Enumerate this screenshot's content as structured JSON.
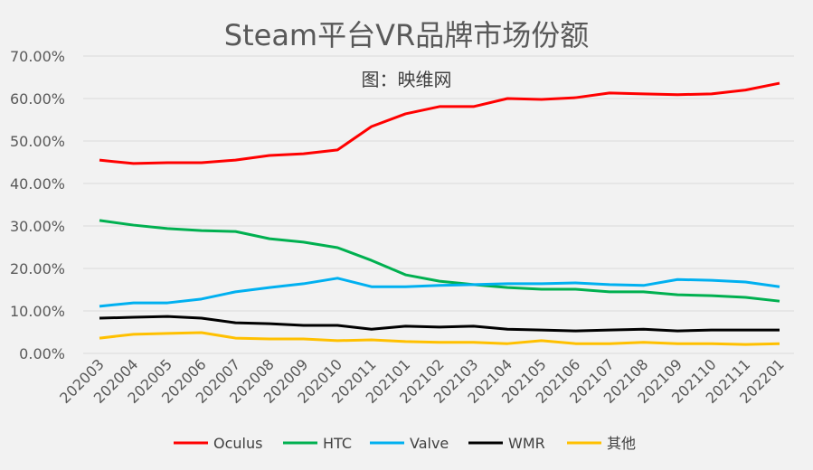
{
  "chart_data": {
    "type": "line",
    "title": "Steam平台VR品牌市场份额",
    "subtitle": "图：映维网",
    "xlabel": "",
    "ylabel": "",
    "ylim": [
      0,
      70
    ],
    "yticks": [
      "0.00%",
      "10.00%",
      "20.00%",
      "30.00%",
      "40.00%",
      "50.00%",
      "60.00%",
      "70.00%"
    ],
    "grid": true,
    "legend_position": "bottom",
    "categories": [
      "202003",
      "202004",
      "202005",
      "202006",
      "202007",
      "202008",
      "202009",
      "202010",
      "202011",
      "202101",
      "202102",
      "202103",
      "202104",
      "202105",
      "202106",
      "202107",
      "202108",
      "202109",
      "202110",
      "202111",
      "202201"
    ],
    "series": [
      {
        "name": "Oculus",
        "color": "#ff0000",
        "values": [
          45.5,
          44.7,
          44.9,
          44.9,
          45.5,
          46.6,
          47.0,
          47.9,
          53.4,
          56.4,
          58.1,
          58.1,
          60.0,
          59.8,
          60.2,
          61.3,
          61.1,
          60.9,
          61.1,
          62.0,
          63.6
        ]
      },
      {
        "name": "HTC",
        "color": "#00b050",
        "values": [
          31.3,
          30.2,
          29.4,
          28.9,
          28.7,
          27.0,
          26.2,
          24.9,
          21.9,
          18.5,
          17.0,
          16.2,
          15.5,
          15.1,
          15.1,
          14.5,
          14.5,
          13.8,
          13.6,
          13.2,
          12.3
        ]
      },
      {
        "name": "Valve",
        "color": "#00b0f0",
        "values": [
          11.1,
          11.9,
          11.9,
          12.8,
          14.5,
          15.5,
          16.4,
          17.7,
          15.7,
          15.7,
          16.0,
          16.2,
          16.4,
          16.4,
          16.6,
          16.2,
          16.0,
          17.4,
          17.2,
          16.8,
          15.7
        ]
      },
      {
        "name": "WMR",
        "color": "#000000",
        "values": [
          8.3,
          8.5,
          8.7,
          8.3,
          7.2,
          7.0,
          6.6,
          6.6,
          5.7,
          6.4,
          6.2,
          6.4,
          5.7,
          5.5,
          5.3,
          5.5,
          5.7,
          5.3,
          5.5,
          5.5,
          5.5
        ]
      },
      {
        "name": "其他",
        "color": "#ffc000",
        "values": [
          3.6,
          4.5,
          4.7,
          4.9,
          3.6,
          3.4,
          3.4,
          3.0,
          3.2,
          2.8,
          2.6,
          2.6,
          2.3,
          3.0,
          2.3,
          2.3,
          2.6,
          2.3,
          2.3,
          2.1,
          2.3
        ]
      }
    ]
  }
}
